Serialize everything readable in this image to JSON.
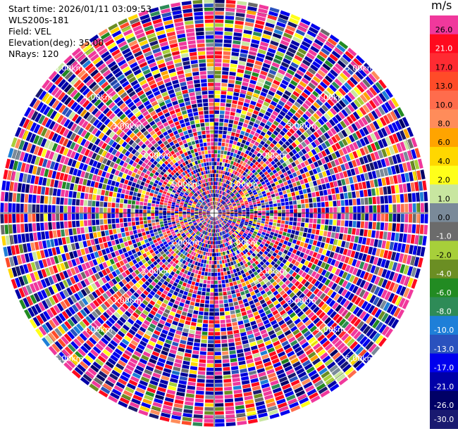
{
  "info": {
    "start_time": "Start time: 2026/01/11 03:09:53",
    "instrument": "WLS200s-181",
    "field": "Field: VEL",
    "elevation": "Elevation(deg): 35.00",
    "nrays": "NRays: 120"
  },
  "colorbar": {
    "unit": "m/s",
    "levels": [
      {
        "label": "26.0",
        "color": "#f0389c"
      },
      {
        "label": "21.0",
        "color": "#ff0a1e"
      },
      {
        "label": "17.0",
        "color": "#ff2b32"
      },
      {
        "label": "13.0",
        "color": "#ff4b28"
      },
      {
        "label": "10.0",
        "color": "#ff6c4c"
      },
      {
        "label": "8.0",
        "color": "#ff8c5a"
      },
      {
        "label": "6.0",
        "color": "#ffa400"
      },
      {
        "label": "4.0",
        "color": "#ffd700"
      },
      {
        "label": "2.0",
        "color": "#ffff1a"
      },
      {
        "label": "1.0",
        "color": "#c8e6a0"
      },
      {
        "label": "0.0",
        "color": "#7a8a99"
      },
      {
        "label": "-1.0",
        "color": "#6b6b6b"
      },
      {
        "label": "-2.0",
        "color": "#a7cf3a"
      },
      {
        "label": "-4.0",
        "color": "#6b8e23"
      },
      {
        "label": "-6.0",
        "color": "#228b22"
      },
      {
        "label": "-8.0",
        "color": "#2e8b57"
      },
      {
        "label": "-10.0",
        "color": "#1e7fd8"
      },
      {
        "label": "-13.0",
        "color": "#2a52be"
      },
      {
        "label": "-17.0",
        "color": "#0000ee"
      },
      {
        "label": "-21.0",
        "color": "#0000a8"
      },
      {
        "label": "-26.0",
        "color": "#000066"
      },
      {
        "label": "-30.0",
        "color": "#191970"
      }
    ]
  },
  "chart_data": {
    "type": "heatmap",
    "projection": "polar PPI",
    "field": "VEL",
    "units": "m/s",
    "nrays": 120,
    "range_labels": [
      "1.00km",
      "2.00km",
      "3.00km",
      "4.00km",
      "5.00km"
    ],
    "range_rings_km": [
      1,
      2,
      3,
      4,
      5
    ],
    "max_range_km": 5.4,
    "colorbar_range": [
      -30.0,
      26.0
    ],
    "gate_values": "noise-dominated velocity field spanning the full colour scale"
  }
}
